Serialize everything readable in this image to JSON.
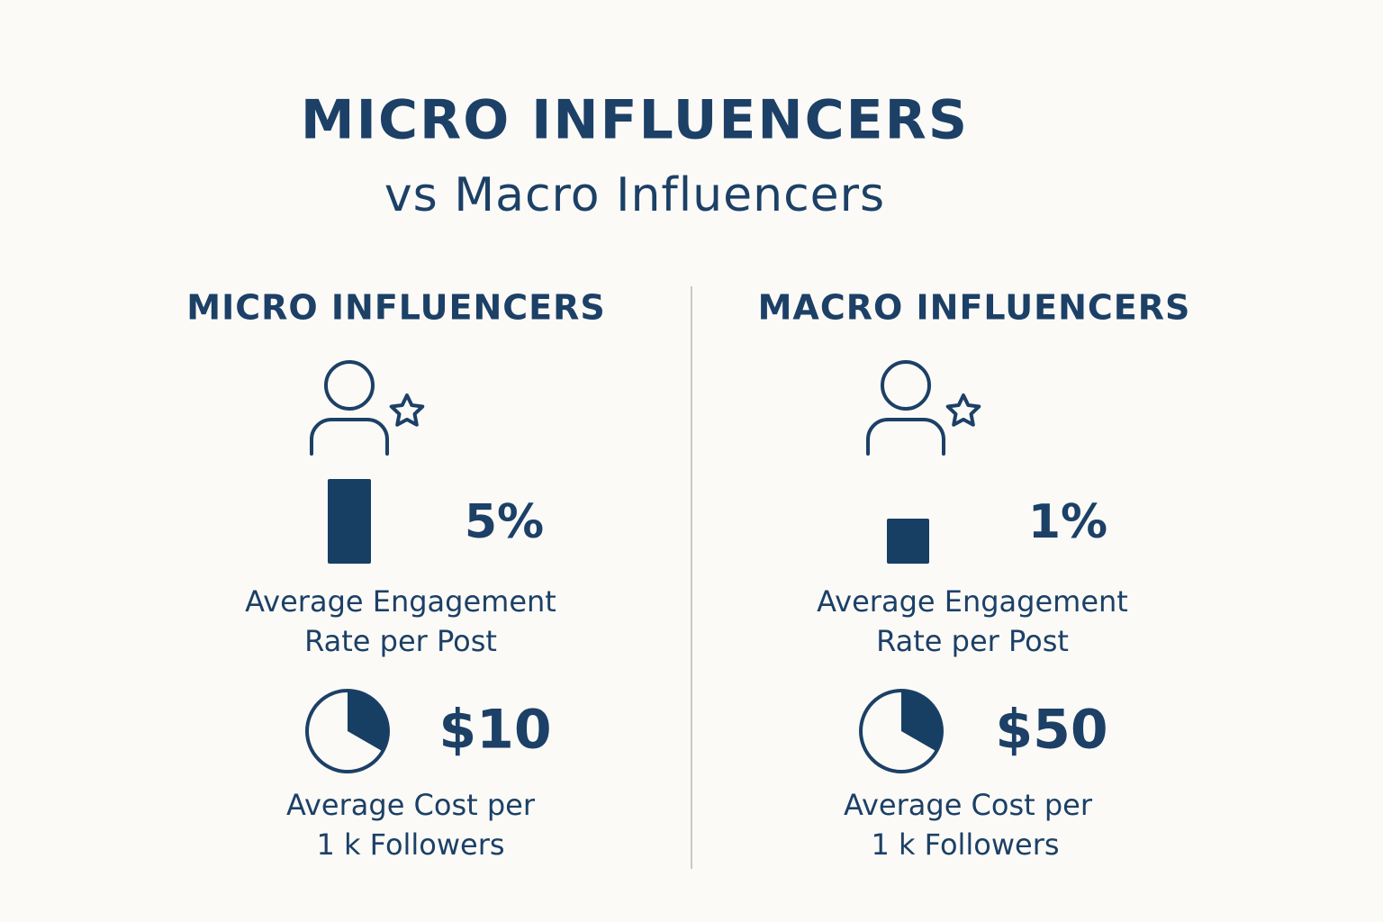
{
  "header": {
    "title": "MICRO INFLUENCERS",
    "subtitle": "vs Macro Influencers"
  },
  "columns": [
    {
      "heading": "MICRO INFLUENCERS",
      "engagement_value": "5%",
      "engagement_label": [
        "Average Engagement",
        "Rate per Post"
      ],
      "cost_value": "$10",
      "cost_label": [
        "Average Cost per",
        "1 k Followers"
      ]
    },
    {
      "heading": "MACRO INFLUENCERS",
      "engagement_value": "1%",
      "engagement_label": [
        "Average Engagement",
        "Rate per Post"
      ],
      "cost_value": "$50",
      "cost_label": [
        "Average Cost per",
        "1 k Followers"
      ]
    }
  ]
}
